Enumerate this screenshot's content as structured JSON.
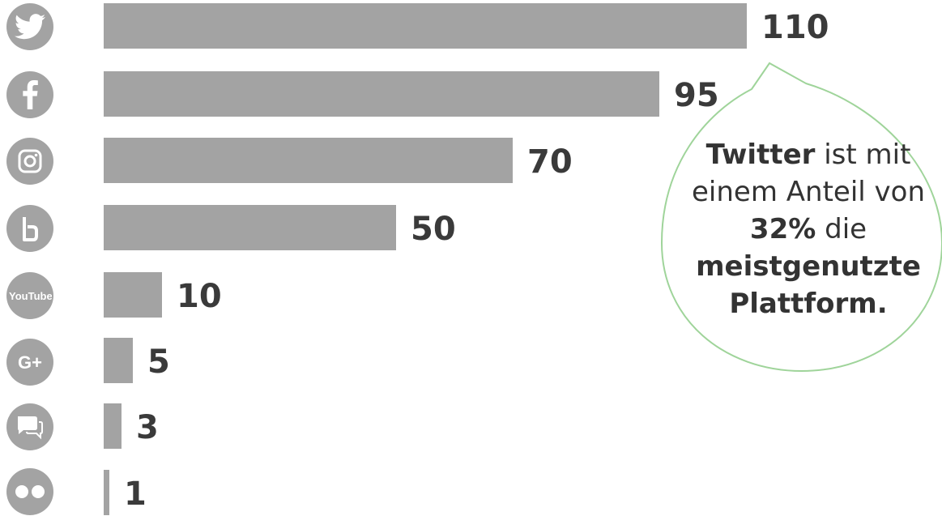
{
  "chart_data": {
    "type": "bar",
    "orientation": "horizontal",
    "categories": [
      "twitter-icon",
      "facebook-icon",
      "instagram-icon",
      "blogger-icon",
      "youtube-icon",
      "google-plus-icon",
      "forum-icon",
      "flickr-icon"
    ],
    "values": [
      110,
      95,
      70,
      50,
      10,
      5,
      3,
      1
    ],
    "value_labels": [
      "110",
      "95",
      "70",
      "50",
      "10",
      "5",
      "3",
      "1"
    ],
    "xlim": [
      0,
      110
    ],
    "grid": false,
    "bar_color": "#a3a3a3",
    "icon_labels": {
      "youtube": "YouTube",
      "google_plus": "G+"
    },
    "annotation": {
      "strong1": "Twitter",
      "text1": " ist mit",
      "line2": "einem Anteil von",
      "strong3": "32%",
      "text3": " die",
      "line4": "meistgenutzte",
      "line5": "Plattform.",
      "border_color": "#9fd49a"
    }
  }
}
